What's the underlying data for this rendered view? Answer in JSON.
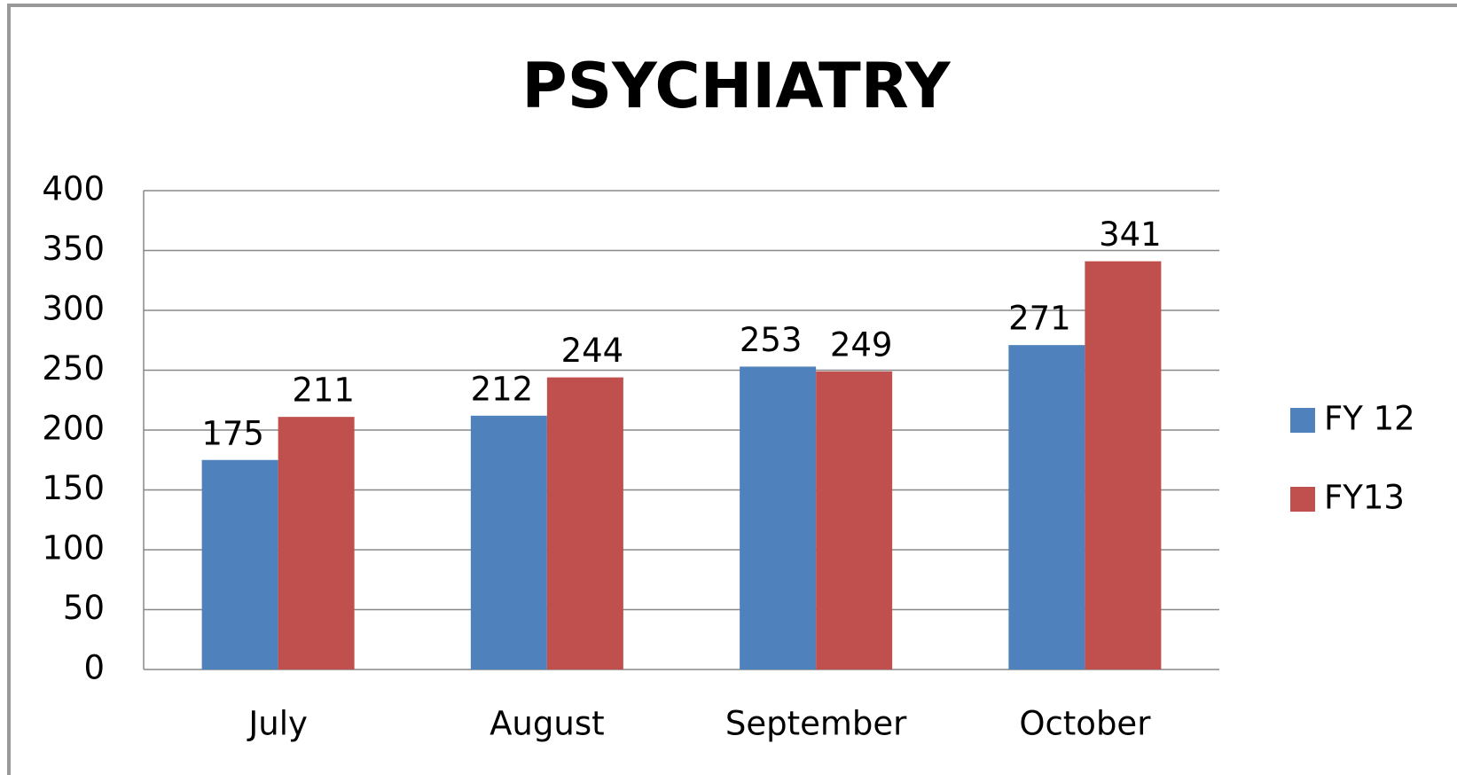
{
  "chart_data": {
    "type": "bar",
    "title": "PSYCHIATRY",
    "categories": [
      "July",
      "August",
      "September",
      "October"
    ],
    "series": [
      {
        "name": "FY 12",
        "color": "#4f81bd",
        "values": [
          175,
          212,
          253,
          271
        ]
      },
      {
        "name": "FY13",
        "color": "#c0504d",
        "values": [
          211,
          244,
          249,
          341
        ]
      }
    ],
    "ylim": [
      0,
      400
    ],
    "yticks": [
      0,
      50,
      100,
      150,
      200,
      250,
      300,
      350,
      400
    ],
    "grid": true,
    "legend": "right"
  }
}
